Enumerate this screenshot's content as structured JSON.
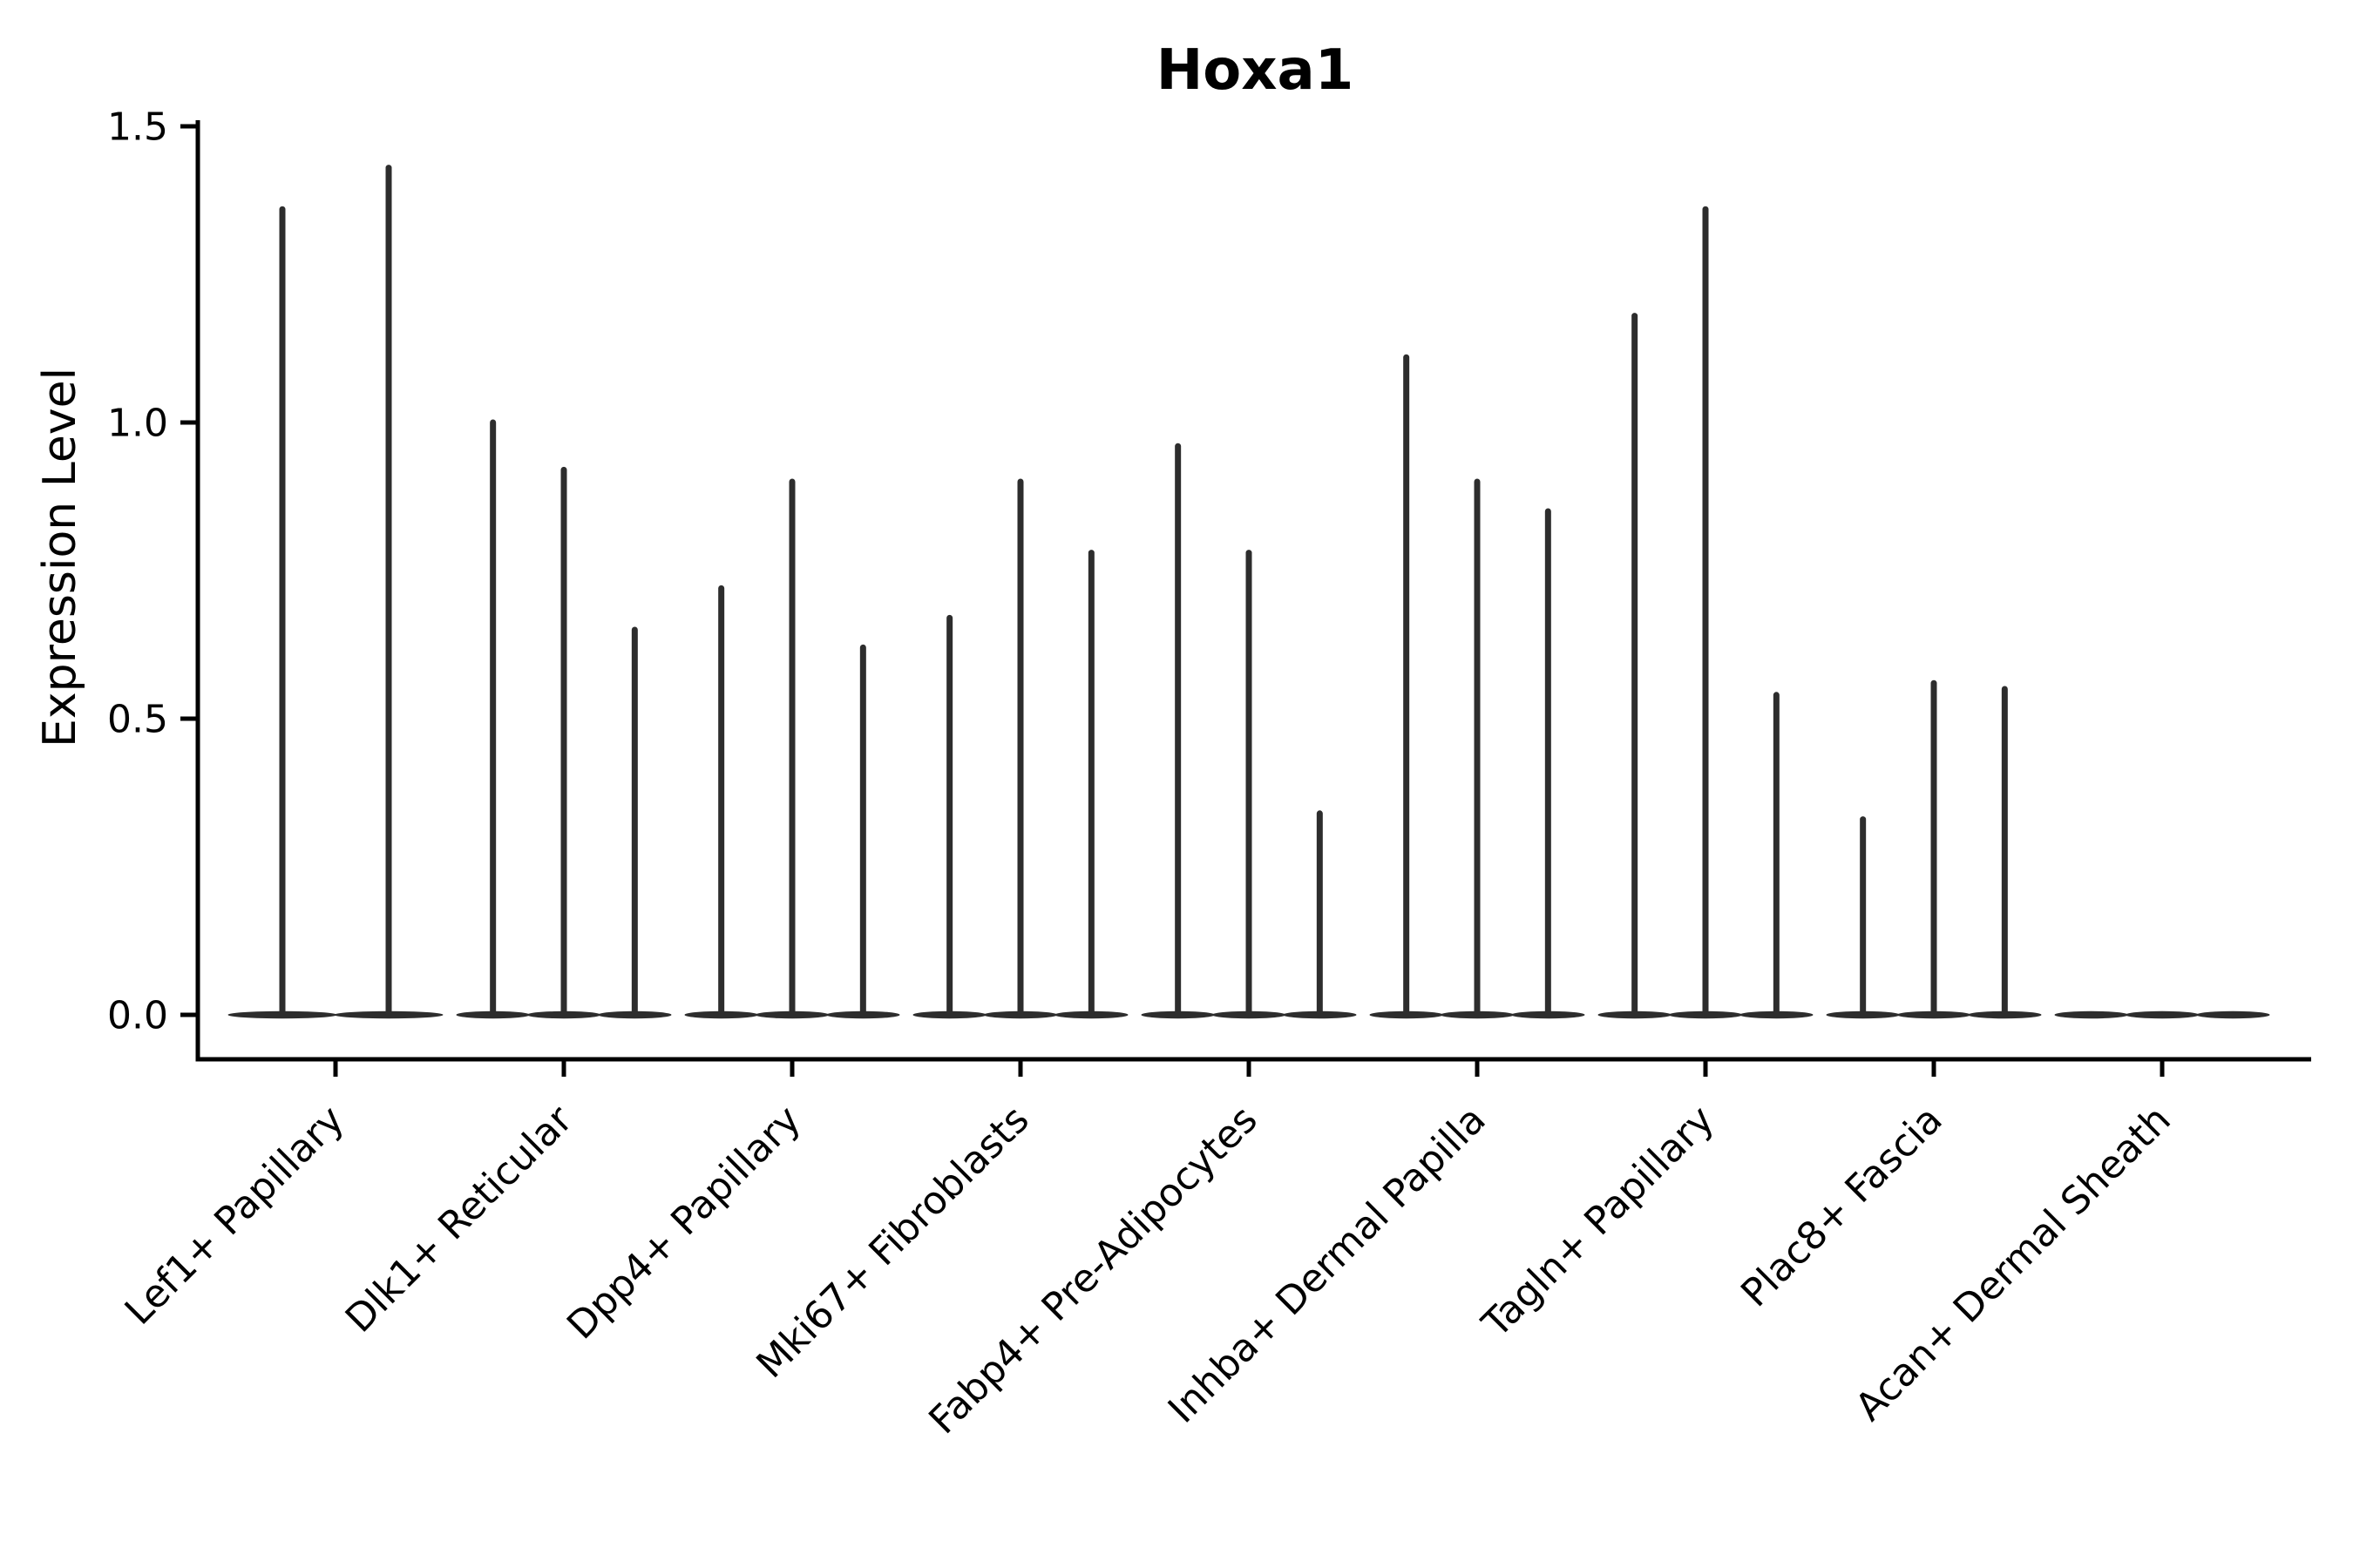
{
  "chart_data": {
    "type": "violin",
    "title": "Hoxa1",
    "xlabel": "",
    "ylabel": "Expression Level",
    "ylim": [
      -0.07,
      1.5
    ],
    "yticks": [
      0.0,
      0.5,
      1.0,
      1.5
    ],
    "ytick_labels": [
      "0.0",
      "0.5",
      "1.0",
      "1.5"
    ],
    "x_tick_rotation": 45,
    "grid": false,
    "legend": "none",
    "categories": [
      "Lef1+ Papillary",
      "Dlk1+ Reticular",
      "Dpp4+ Papillary",
      "Mki67+ Fibroblasts",
      "Fabp4+ Pre-Adipocytes",
      "Inhba+ Dermal Papilla",
      "Tagln+ Papillary",
      "Plac8+ Fascia",
      "Acan+ Dermal Sheath"
    ],
    "groups": [
      {
        "category": "Lef1+ Papillary",
        "violin_maxima": [
          1.36,
          1.43
        ]
      },
      {
        "category": "Dlk1+ Reticular",
        "violin_maxima": [
          1.0,
          0.92,
          0.65
        ]
      },
      {
        "category": "Dpp4+ Papillary",
        "violin_maxima": [
          0.72,
          0.9,
          0.62
        ]
      },
      {
        "category": "Mki67+ Fibroblasts",
        "violin_maxima": [
          0.67,
          0.9,
          0.78
        ]
      },
      {
        "category": "Fabp4+ Pre-Adipocytes",
        "violin_maxima": [
          0.96,
          0.78,
          0.34
        ]
      },
      {
        "category": "Inhba+ Dermal Papilla",
        "violin_maxima": [
          1.11,
          0.9,
          0.85
        ]
      },
      {
        "category": "Tagln+ Papillary",
        "violin_maxima": [
          1.18,
          1.36,
          0.54
        ]
      },
      {
        "category": "Plac8+ Fascia",
        "violin_maxima": [
          0.33,
          0.56,
          0.55
        ]
      },
      {
        "category": "Acan+ Dermal Sheath",
        "violin_maxima": [
          0.0,
          0.0,
          0.0
        ]
      }
    ],
    "description": "Violin bodies are collapsed flat at expression 0 with thin spikes reaching each violin's maximum expression value",
    "colors": {
      "violin": "#2d2d2d",
      "axis": "#000000",
      "text": "#000000",
      "background": "#ffffff"
    }
  }
}
